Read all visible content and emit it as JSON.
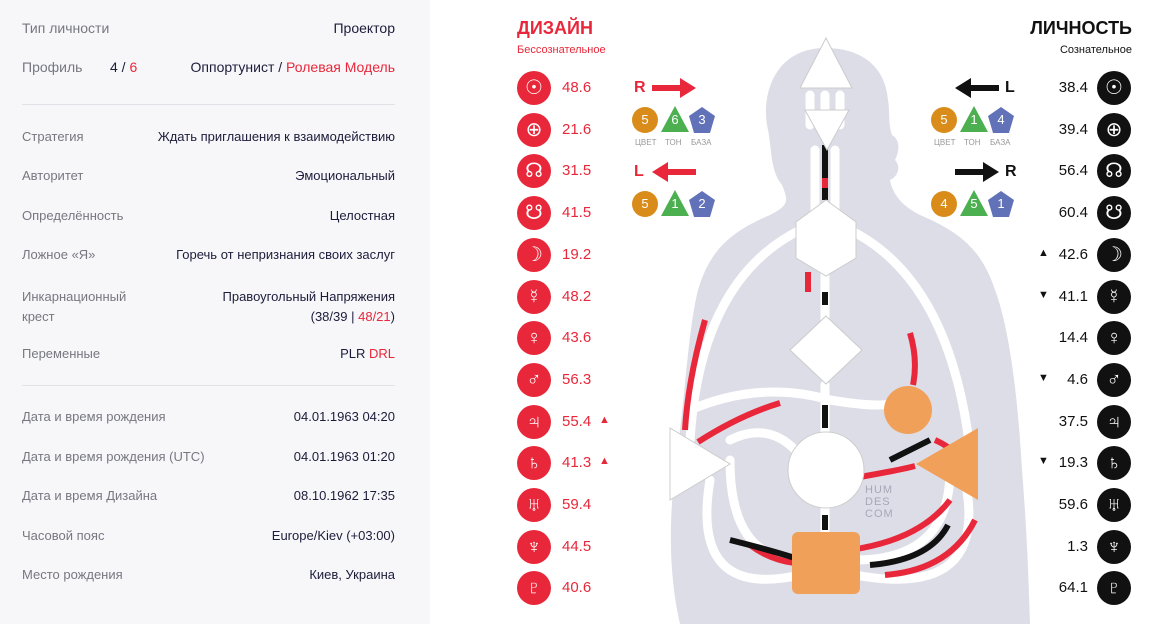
{
  "summary": {
    "type_label": "Тип личности",
    "type_value": "Проектор",
    "profile_label": "Профиль",
    "profile_num1": "4",
    "profile_slash": " / ",
    "profile_num2": "6",
    "profile_name1": "Оппортунист",
    "profile_sep": " / ",
    "profile_name2": "Ролевая Модель"
  },
  "details": [
    {
      "label": "Стратегия",
      "value": "Ждать приглашения к взаимодействию"
    },
    {
      "label": "Авторитет",
      "value": "Эмоциональный"
    },
    {
      "label": "Определённость",
      "value": "Целостная"
    },
    {
      "label": "Ложное «Я»",
      "value": "Горечь от непризнания своих заслуг"
    }
  ],
  "cross": {
    "label_line1": "Инкарнационный",
    "label_line2": "крест",
    "value_line1": "Правоугольный Напряжения",
    "open": "(",
    "gates1": "38/39",
    "sep": " | ",
    "gates2": "48/21",
    "close": ")"
  },
  "variables": {
    "label": "Переменные",
    "part1": "PLR ",
    "part2": "DRL"
  },
  "birth": [
    {
      "label": "Дата и время рождения",
      "value": "04.01.1963 04:20"
    },
    {
      "label": "Дата и время рождения (UTC)",
      "value": "04.01.1963 01:20"
    },
    {
      "label": "Дата и время Дизайна",
      "value": "08.10.1962 17:35"
    },
    {
      "label": "Часовой пояс",
      "value": "Europe/Kiev (+03:00)"
    },
    {
      "label": "Место рождения",
      "value": "Киев, Украина"
    }
  ],
  "design": {
    "title": "ДИЗАЙН",
    "subtitle": "Бессознательное",
    "planets": [
      {
        "icon": "sun-icon",
        "glyph": "☉",
        "value": "48.6",
        "mark": ""
      },
      {
        "icon": "earth-icon",
        "glyph": "⊕",
        "value": "21.6",
        "mark": ""
      },
      {
        "icon": "north-node-icon",
        "glyph": "☊",
        "value": "31.5",
        "mark": ""
      },
      {
        "icon": "south-node-icon",
        "glyph": "☋",
        "value": "41.5",
        "mark": ""
      },
      {
        "icon": "moon-icon",
        "glyph": "☽",
        "value": "19.2",
        "mark": ""
      },
      {
        "icon": "mercury-icon",
        "glyph": "☿",
        "value": "48.2",
        "mark": ""
      },
      {
        "icon": "venus-icon",
        "glyph": "♀",
        "value": "43.6",
        "mark": ""
      },
      {
        "icon": "mars-icon",
        "glyph": "♂",
        "value": "56.3",
        "mark": ""
      },
      {
        "icon": "jupiter-icon",
        "glyph": "♃",
        "value": "55.4",
        "mark": "▲"
      },
      {
        "icon": "saturn-icon",
        "glyph": "♄",
        "value": "41.3",
        "mark": "▲"
      },
      {
        "icon": "uranus-icon",
        "glyph": "♅",
        "value": "59.4",
        "mark": ""
      },
      {
        "icon": "neptune-icon",
        "glyph": "♆",
        "value": "44.5",
        "mark": ""
      },
      {
        "icon": "pluto-icon",
        "glyph": "♇",
        "value": "40.6",
        "mark": ""
      }
    ],
    "arrow1": {
      "letter": "R",
      "color": "5",
      "tone": "6",
      "base": "3"
    },
    "arrow2": {
      "letter": "L",
      "color": "5",
      "tone": "1",
      "base": "2"
    },
    "labels": {
      "color": "ЦВЕТ",
      "tone": "ТОН",
      "base": "БАЗА"
    }
  },
  "personality": {
    "title": "ЛИЧНОСТЬ",
    "subtitle": "Сознательное",
    "planets": [
      {
        "icon": "sun-icon",
        "glyph": "☉",
        "value": "38.4",
        "mark": ""
      },
      {
        "icon": "earth-icon",
        "glyph": "⊕",
        "value": "39.4",
        "mark": ""
      },
      {
        "icon": "north-node-icon",
        "glyph": "☊",
        "value": "56.4",
        "mark": ""
      },
      {
        "icon": "south-node-icon",
        "glyph": "☋",
        "value": "60.4",
        "mark": ""
      },
      {
        "icon": "moon-icon",
        "glyph": "☽",
        "value": "42.6",
        "mark": "▲"
      },
      {
        "icon": "mercury-icon",
        "glyph": "☿",
        "value": "41.1",
        "mark": "▼"
      },
      {
        "icon": "venus-icon",
        "glyph": "♀",
        "value": "14.4",
        "mark": ""
      },
      {
        "icon": "mars-icon",
        "glyph": "♂",
        "value": "4.6",
        "mark": "▼"
      },
      {
        "icon": "jupiter-icon",
        "glyph": "♃",
        "value": "37.5",
        "mark": ""
      },
      {
        "icon": "saturn-icon",
        "glyph": "♄",
        "value": "19.3",
        "mark": "▼"
      },
      {
        "icon": "uranus-icon",
        "glyph": "♅",
        "value": "59.6",
        "mark": ""
      },
      {
        "icon": "neptune-icon",
        "glyph": "♆",
        "value": "1.3",
        "mark": ""
      },
      {
        "icon": "pluto-icon",
        "glyph": "♇",
        "value": "64.1",
        "mark": ""
      }
    ],
    "arrow1": {
      "letter": "L",
      "color": "5",
      "tone": "1",
      "base": "4"
    },
    "arrow2": {
      "letter": "R",
      "color": "4",
      "tone": "5",
      "base": "1"
    },
    "labels": {
      "color": "ЦВЕТ",
      "tone": "ТОН",
      "base": "БАЗА"
    }
  },
  "watermark": [
    "HUM",
    "DES",
    "COM"
  ],
  "colors": {
    "design": "#e8283a",
    "personality": "#111111",
    "defined": "#f0a058",
    "orange_tone": "#d98c1a",
    "green_tone": "#4caf50",
    "blue_tone": "#6272b8",
    "purple": "#6b3f8a"
  }
}
